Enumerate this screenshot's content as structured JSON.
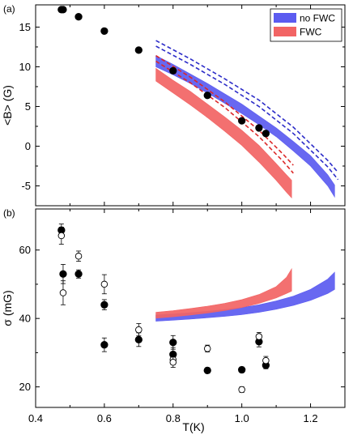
{
  "chart_data": [
    {
      "panel_label": "(a)",
      "type": "scatter",
      "xlabel": "",
      "ylabel": "<B>  (G)",
      "xlim": [
        0.4,
        1.3
      ],
      "ylim": [
        -7.5,
        17.8
      ],
      "xticks": [
        0.4,
        0.6,
        0.8,
        1.0,
        1.2
      ],
      "xtick_labels": [
        "",
        "",
        "",
        "",
        ""
      ],
      "yticks": [
        -5,
        0,
        5,
        10,
        15
      ],
      "ytick_labels": [
        "-5",
        "0",
        "5",
        "10",
        "15"
      ],
      "legend": {
        "placement": "top-right",
        "entries": [
          {
            "label": "no FWC",
            "color": "#5b5bf0"
          },
          {
            "label": "FWC",
            "color": "#f26464"
          }
        ]
      },
      "points": {
        "x": [
          0.475,
          0.48,
          0.525,
          0.6,
          0.7,
          0.8,
          0.9,
          1.0,
          1.05,
          1.07
        ],
        "y": [
          17.2,
          17.2,
          16.3,
          14.5,
          12.1,
          9.5,
          6.4,
          3.2,
          2.3,
          1.6
        ]
      },
      "bands": [
        {
          "series": "no FWC",
          "color": "#5b5bf0",
          "x": [
            0.75,
            0.8,
            0.85,
            0.9,
            0.95,
            1.0,
            1.05,
            1.1,
            1.15,
            1.2,
            1.25,
            1.27
          ],
          "upper": [
            11.4,
            10.3,
            9.1,
            7.9,
            6.6,
            5.3,
            3.8,
            2.3,
            0.6,
            -1.2,
            -3.6,
            -4.9
          ],
          "lower": [
            10.0,
            9.0,
            7.9,
            6.7,
            5.4,
            4.1,
            2.7,
            1.2,
            -0.6,
            -2.5,
            -5.0,
            -6.4
          ]
        },
        {
          "series": "FWC",
          "color": "#f26464",
          "x": [
            0.75,
            0.8,
            0.85,
            0.9,
            0.95,
            1.0,
            1.05,
            1.1,
            1.13,
            1.145
          ],
          "upper": [
            9.8,
            8.3,
            6.9,
            5.3,
            3.7,
            2.0,
            0.1,
            -2.2,
            -3.6,
            -4.3
          ],
          "lower": [
            8.2,
            6.7,
            5.2,
            3.6,
            1.9,
            0.1,
            -2.0,
            -4.3,
            -5.8,
            -6.5
          ]
        }
      ],
      "dashed_lines": [
        {
          "color": "#2c2cc8",
          "x": [
            0.75,
            0.85,
            0.95,
            1.05,
            1.15,
            1.25,
            1.28
          ],
          "y": [
            13.3,
            11.0,
            8.5,
            5.8,
            2.4,
            -1.8,
            -3.3
          ]
        },
        {
          "color": "#2c2cc8",
          "x": [
            0.75,
            0.85,
            0.95,
            1.05,
            1.15,
            1.25,
            1.28
          ],
          "y": [
            12.6,
            10.3,
            7.8,
            5.0,
            1.6,
            -2.6,
            -4.2
          ]
        },
        {
          "color": "#dc2828",
          "x": [
            0.75,
            0.85,
            0.95,
            1.05,
            1.12,
            1.15
          ],
          "y": [
            11.4,
            8.7,
            5.6,
            2.0,
            -1.0,
            -2.4
          ]
        },
        {
          "color": "#dc2828",
          "x": [
            0.75,
            0.85,
            0.95,
            1.05,
            1.12,
            1.15
          ],
          "y": [
            10.7,
            8.0,
            4.9,
            1.2,
            -1.9,
            -3.4
          ]
        }
      ]
    },
    {
      "panel_label": "(b)",
      "type": "scatter",
      "xlabel": "T(K)",
      "ylabel": "σ  (mG)",
      "xlim": [
        0.4,
        1.3
      ],
      "ylim": [
        14,
        72
      ],
      "xticks": [
        0.4,
        0.6,
        0.8,
        1.0,
        1.2
      ],
      "xtick_labels": [
        "0.4",
        "0.6",
        "0.8",
        "1.0",
        "1.2"
      ],
      "yticks": [
        20,
        40,
        60
      ],
      "ytick_labels": [
        "20",
        "40",
        "60"
      ],
      "filled_points": {
        "x": [
          0.475,
          0.48,
          0.525,
          0.6,
          0.6,
          0.7,
          0.8,
          0.8,
          0.9,
          1.0,
          1.05,
          1.07
        ],
        "y": [
          65.8,
          53.0,
          53.0,
          44.0,
          32.3,
          33.8,
          33.0,
          29.5,
          24.8,
          25.0,
          33.2,
          26.3
        ],
        "err": [
          1.8,
          2.8,
          1.2,
          1.5,
          2.0,
          2.0,
          2.0,
          2.0,
          0.8,
          0.8,
          1.5,
          1.0
        ]
      },
      "open_points": {
        "x": [
          0.475,
          0.48,
          0.525,
          0.6,
          0.7,
          0.8,
          0.8,
          0.9,
          1.0,
          1.05,
          1.07
        ],
        "y": [
          64.2,
          47.5,
          58.2,
          50.0,
          36.7,
          28.0,
          27.2,
          31.2,
          19.2,
          34.7,
          27.7
        ],
        "err": [
          2.5,
          3.5,
          1.5,
          2.8,
          1.8,
          1.5,
          1.5,
          1.0,
          0.8,
          1.2,
          1.2
        ]
      },
      "bands": [
        {
          "series": "no FWC",
          "color": "#5b5bf0",
          "x": [
            0.75,
            0.8,
            0.85,
            0.9,
            0.95,
            1.0,
            1.05,
            1.1,
            1.15,
            1.2,
            1.25,
            1.27
          ],
          "upper": [
            41.0,
            41.3,
            41.7,
            42.1,
            42.6,
            43.2,
            44.0,
            45.1,
            46.5,
            48.5,
            51.5,
            53.5
          ],
          "lower": [
            39.2,
            39.5,
            39.8,
            40.2,
            40.6,
            41.1,
            41.8,
            42.7,
            43.8,
            45.3,
            47.3,
            48.5
          ]
        },
        {
          "series": "FWC",
          "color": "#f26464",
          "x": [
            0.75,
            0.8,
            0.85,
            0.9,
            0.95,
            1.0,
            1.05,
            1.1,
            1.13,
            1.145
          ],
          "upper": [
            41.8,
            42.3,
            42.9,
            43.6,
            44.4,
            45.5,
            47.0,
            49.3,
            52.0,
            54.5
          ],
          "lower": [
            40.1,
            40.5,
            41.0,
            41.6,
            42.3,
            43.2,
            44.4,
            46.0,
            47.3,
            48.0
          ]
        }
      ]
    }
  ]
}
